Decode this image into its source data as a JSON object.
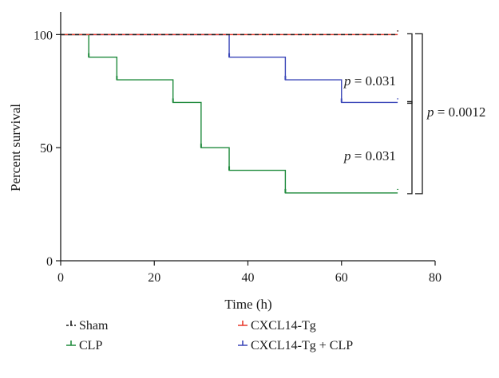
{
  "chart_data": {
    "type": "line",
    "step": true,
    "xlabel": "Time (h)",
    "ylabel": "Percent survival",
    "xlim": [
      0,
      80
    ],
    "ylim": [
      0,
      110
    ],
    "xticks": [
      0,
      20,
      40,
      60,
      80
    ],
    "yticks": [
      0,
      50,
      100
    ],
    "grid": false,
    "legend_position": "bottom",
    "series": [
      {
        "name": "Sham",
        "color": "#1a1a1a",
        "dashed": true,
        "x": [
          0,
          72
        ],
        "y": [
          100,
          100
        ]
      },
      {
        "name": "CXCL14-Tg",
        "color": "#e8392b",
        "dashed": false,
        "x": [
          0,
          72
        ],
        "y": [
          100,
          100
        ]
      },
      {
        "name": "CLP",
        "color": "#1f8a3c",
        "dashed": false,
        "x": [
          0,
          6,
          12,
          24,
          30,
          36,
          48,
          72
        ],
        "y": [
          100,
          90,
          80,
          70,
          50,
          40,
          30,
          30
        ]
      },
      {
        "name": "CXCL14-Tg + CLP",
        "color": "#3a46b8",
        "dashed": false,
        "x": [
          0,
          36,
          48,
          60,
          72
        ],
        "y": [
          100,
          90,
          80,
          70,
          70
        ]
      }
    ],
    "annotations": [
      {
        "text": "p = 0.031",
        "p_label": "p",
        "value_label": " = 0.031",
        "between": [
          "Sham",
          "CXCL14-Tg + CLP"
        ]
      },
      {
        "text": "p = 0.031",
        "p_label": "p",
        "value_label": " = 0.031",
        "between": [
          "CXCL14-Tg + CLP",
          "CLP"
        ]
      },
      {
        "text": "p = 0.0012",
        "p_label": "p",
        "value_label": " = 0.0012",
        "between": [
          "Sham",
          "CLP"
        ]
      }
    ]
  }
}
